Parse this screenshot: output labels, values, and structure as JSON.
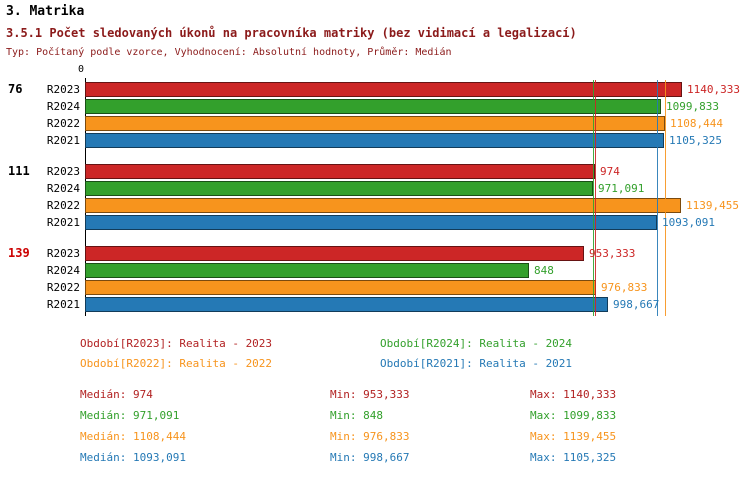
{
  "header": {
    "title": "3. Matrika",
    "subtitle": "3.5.1 Počet sledovaných úkonů na pracovníka matriky (bez vidimací a legalizací)",
    "meta": "Typ: Počítaný podle vzorce, Vyhodnocení: Absolutní hodnoty, Průměr: Medián",
    "title_color": "#000000",
    "subtitle_color": "#8b1a1a",
    "meta_color": "#8b1a1a"
  },
  "chart_data": {
    "type": "bar",
    "orientation": "horizontal",
    "title": "3.5.1 Počet sledovaných úkonů na pracovníka matriky (bez vidimací a legalizací)",
    "axis": {
      "origin_label": "0",
      "xmin": 0,
      "xmax": 1150,
      "grid": false
    },
    "categories": [
      "76",
      "111",
      "139"
    ],
    "category_colors": [
      "#000000",
      "#000000",
      "#cc0000"
    ],
    "series": [
      {
        "name": "R2023",
        "color": "#cc2626",
        "values": [
          1140.333,
          974,
          953.333
        ],
        "value_labels": [
          "1140,333",
          "974",
          "953,333"
        ],
        "median": 974
      },
      {
        "name": "R2024",
        "color": "#33a02c",
        "values": [
          1099.833,
          971.091,
          848
        ],
        "value_labels": [
          "1099,833",
          "971,091",
          "848"
        ],
        "median": 971.091
      },
      {
        "name": "R2022",
        "color": "#f7941d",
        "values": [
          1108.444,
          1139.455,
          976.833
        ],
        "value_labels": [
          "1108,444",
          "1139,455",
          "976,833"
        ],
        "median": 1108.444
      },
      {
        "name": "R2021",
        "color": "#2579b5",
        "values": [
          1105.325,
          1093.091,
          998.667
        ],
        "value_labels": [
          "1105,325",
          "1093,091",
          "998,667"
        ],
        "median": 1093.091
      }
    ],
    "legend_position": "bottom"
  },
  "legend": {
    "items": [
      {
        "text": "Období[R2023]: Realita - 2023",
        "color": "#b22222"
      },
      {
        "text": "Období[R2024]: Realita - 2024",
        "color": "#33a02c"
      },
      {
        "text": "Období[R2022]: Realita - 2022",
        "color": "#f7941d"
      },
      {
        "text": "Období[R2021]: Realita - 2021",
        "color": "#2579b5"
      }
    ]
  },
  "stats": {
    "rows": [
      {
        "median": "Medián: 974",
        "min": "Min: 953,333",
        "max": "Max: 1140,333",
        "color": "#b22222"
      },
      {
        "median": "Medián: 971,091",
        "min": "Min: 848",
        "max": "Max: 1099,833",
        "color": "#33a02c"
      },
      {
        "median": "Medián: 1108,444",
        "min": "Min: 976,833",
        "max": "Max: 1139,455",
        "color": "#f7941d"
      },
      {
        "median": "Medián: 1093,091",
        "min": "Min: 998,667",
        "max": "Max: 1105,325",
        "color": "#2579b5"
      }
    ]
  }
}
